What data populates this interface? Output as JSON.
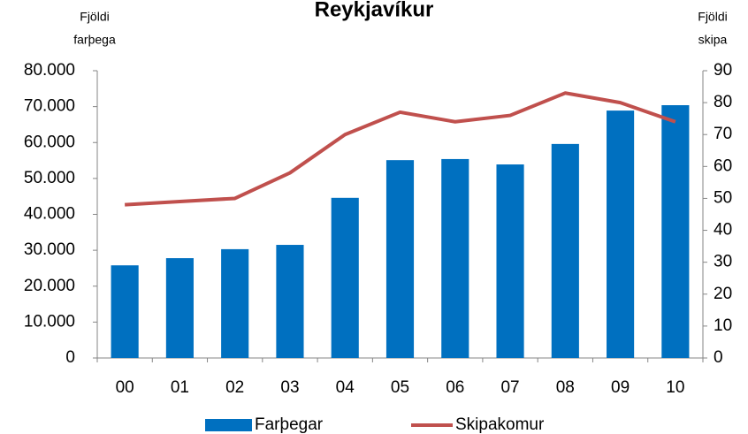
{
  "chart_data": {
    "type": "bar-line",
    "title": "Reykjavíkur",
    "y_label": [
      "Fjöldi",
      "farþega"
    ],
    "y2_label": [
      "Fjöldi",
      "skipa"
    ],
    "categories": [
      "00",
      "01",
      "02",
      "03",
      "04",
      "05",
      "06",
      "07",
      "08",
      "09",
      "10"
    ],
    "series": [
      {
        "name": "Farþegar",
        "type": "bar",
        "color": "#0070c0",
        "values": [
          25800,
          27800,
          30300,
          31500,
          44600,
          55100,
          55400,
          53900,
          59600,
          68900,
          70400
        ]
      },
      {
        "name": "Skipakomur",
        "type": "line",
        "axis": "y2",
        "color": "#c0504d",
        "values": [
          48,
          49,
          50,
          58,
          70,
          77,
          74,
          76,
          83,
          80,
          74
        ]
      }
    ],
    "ylim": [
      0,
      80000
    ],
    "yticks": [
      0,
      {
        "value": 10000,
        "label": "10.000"
      },
      {
        "value": 20000,
        "label": "20.000"
      },
      {
        "value": 30000,
        "label": "30.000"
      },
      {
        "value": 40000,
        "label": "40.000"
      },
      {
        "value": 50000,
        "label": "50.000"
      },
      {
        "value": 60000,
        "label": "60.000"
      },
      {
        "value": 70000,
        "label": "70.000"
      },
      {
        "value": 80000,
        "label": "80.000"
      }
    ],
    "y2lim": [
      0,
      90
    ],
    "y2ticks": [
      0,
      10,
      20,
      30,
      40,
      50,
      60,
      70,
      80,
      90
    ],
    "grid": false,
    "legend": "bottom"
  }
}
